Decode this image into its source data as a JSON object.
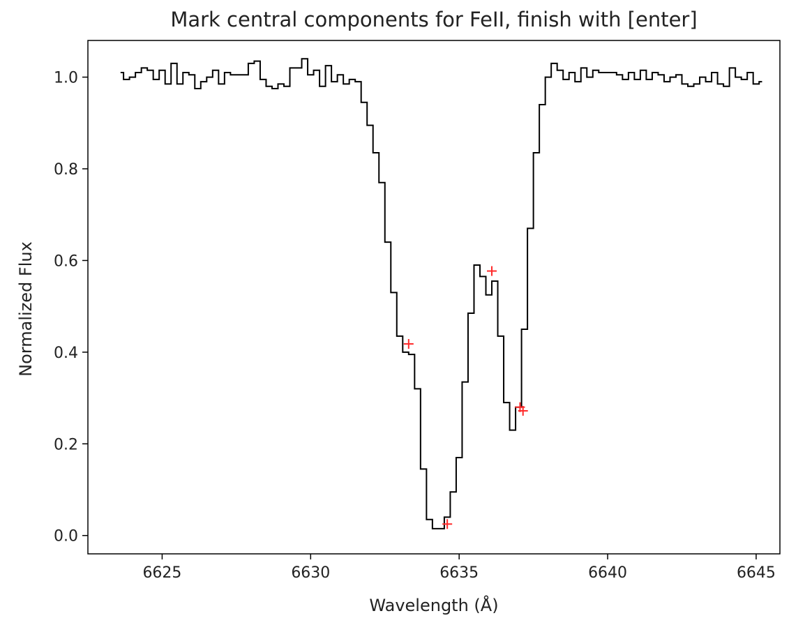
{
  "chart_data": {
    "type": "line",
    "drawstyle": "steps-mid",
    "title": "Mark central components for FeII, finish with [enter]",
    "xlabel": "Wavelength  (Å)",
    "ylabel": "Normalized Flux",
    "xlim": [
      6622.5,
      6645.8
    ],
    "ylim": [
      -0.04,
      1.08
    ],
    "xticks": [
      6625,
      6630,
      6635,
      6640,
      6645
    ],
    "xtick_labels": [
      "6625",
      "6630",
      "6635",
      "6640",
      "6645"
    ],
    "yticks": [
      0.0,
      0.2,
      0.4,
      0.6,
      0.8,
      1.0
    ],
    "ytick_labels": [
      "0.0",
      "0.2",
      "0.4",
      "0.6",
      "0.8",
      "1.0"
    ],
    "grid": false,
    "series": [
      {
        "color": "#000000",
        "x": [
          6623.6,
          6623.8,
          6624.0,
          6624.2,
          6624.4,
          6624.6,
          6624.8,
          6625.0,
          6625.2,
          6625.4,
          6625.6,
          6625.8,
          6626.0,
          6626.2,
          6626.4,
          6626.6,
          6626.8,
          6627.0,
          6627.2,
          6627.4,
          6627.6,
          6627.8,
          6628.0,
          6628.2,
          6628.4,
          6628.6,
          6628.8,
          6629.0,
          6629.2,
          6629.4,
          6629.6,
          6629.8,
          6630.0,
          6630.2,
          6630.4,
          6630.6,
          6630.8,
          6631.0,
          6631.2,
          6631.4,
          6631.6,
          6631.8,
          6632.0,
          6632.2,
          6632.4,
          6632.6,
          6632.8,
          6633.0,
          6633.2,
          6633.4,
          6633.6,
          6633.8,
          6634.0,
          6634.2,
          6634.4,
          6634.6,
          6634.8,
          6635.0,
          6635.2,
          6635.4,
          6635.6,
          6635.8,
          6636.0,
          6636.2,
          6636.4,
          6636.6,
          6636.8,
          6637.0,
          6637.2,
          6637.4,
          6637.6,
          6637.8,
          6638.0,
          6638.2,
          6638.4,
          6638.6,
          6638.8,
          6639.0,
          6639.2,
          6639.4,
          6639.6,
          6639.8,
          6640.0,
          6640.2,
          6640.4,
          6640.6,
          6640.8,
          6641.0,
          6641.2,
          6641.4,
          6641.6,
          6641.8,
          6642.0,
          6642.2,
          6642.4,
          6642.6,
          6642.8,
          6643.0,
          6643.2,
          6643.4,
          6643.6,
          6643.8,
          6644.0,
          6644.2,
          6644.4,
          6644.6,
          6644.8,
          6645.0,
          6645.2
        ],
        "y": [
          1.01,
          0.995,
          1.0,
          1.01,
          1.02,
          1.015,
          0.995,
          1.015,
          0.985,
          1.03,
          0.985,
          1.01,
          1.005,
          0.975,
          0.99,
          1.0,
          1.015,
          0.985,
          1.01,
          1.005,
          1.005,
          1.005,
          1.03,
          1.035,
          0.995,
          0.98,
          0.975,
          0.985,
          0.98,
          1.02,
          1.02,
          1.04,
          1.005,
          1.015,
          0.98,
          1.025,
          0.99,
          1.005,
          0.985,
          0.995,
          0.99,
          0.945,
          0.895,
          0.835,
          0.77,
          0.64,
          0.53,
          0.435,
          0.4,
          0.395,
          0.32,
          0.145,
          0.035,
          0.015,
          0.015,
          0.04,
          0.095,
          0.17,
          0.335,
          0.485,
          0.59,
          0.565,
          0.525,
          0.555,
          0.435,
          0.29,
          0.23,
          0.28,
          0.45,
          0.67,
          0.835,
          0.94,
          1.0,
          1.03,
          1.015,
          0.995,
          1.01,
          0.99,
          1.02,
          1.0,
          1.015,
          1.01,
          1.01,
          1.01,
          1.005,
          0.995,
          1.01,
          0.995,
          1.015,
          0.995,
          1.01,
          1.005,
          0.99,
          1.0,
          1.005,
          0.985,
          0.98,
          0.985,
          1.0,
          0.99,
          1.01,
          0.985,
          0.98,
          1.02,
          1.0,
          0.995,
          1.01,
          0.985,
          0.99
        ]
      }
    ],
    "markers": {
      "symbol": "+",
      "color": "#ff2a2a",
      "points": [
        {
          "x": 6633.3,
          "y": 0.418
        },
        {
          "x": 6634.6,
          "y": 0.025
        },
        {
          "x": 6636.1,
          "y": 0.577
        },
        {
          "x": 6637.05,
          "y": 0.28
        },
        {
          "x": 6637.15,
          "y": 0.272
        }
      ]
    }
  }
}
